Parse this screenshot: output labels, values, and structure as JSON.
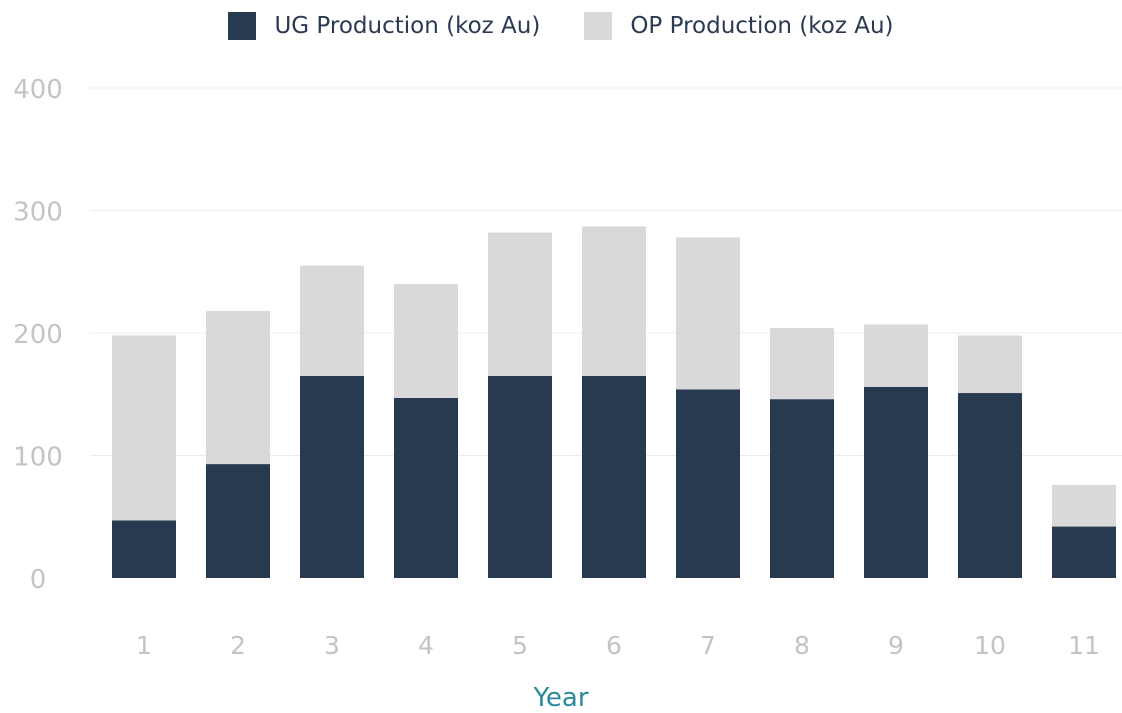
{
  "chart_data": {
    "type": "bar",
    "stacked": true,
    "categories": [
      "1",
      "2",
      "3",
      "4",
      "5",
      "6",
      "7",
      "8",
      "9",
      "10",
      "11"
    ],
    "series": [
      {
        "name": "UG Production (koz Au)",
        "color": "#283a50",
        "values": [
          47,
          93,
          165,
          147,
          165,
          165,
          154,
          146,
          156,
          151,
          42
        ]
      },
      {
        "name": "OP Production (koz Au)",
        "color": "#d9d9d9",
        "values": [
          151,
          125,
          90,
          93,
          117,
          122,
          124,
          58,
          51,
          47,
          34
        ]
      }
    ],
    "title": "",
    "xlabel": "Year",
    "ylabel": "",
    "ylim": [
      0,
      400
    ],
    "yticks": [
      0,
      100,
      200,
      300,
      400
    ],
    "grid": true,
    "legend_position": "top-center"
  }
}
